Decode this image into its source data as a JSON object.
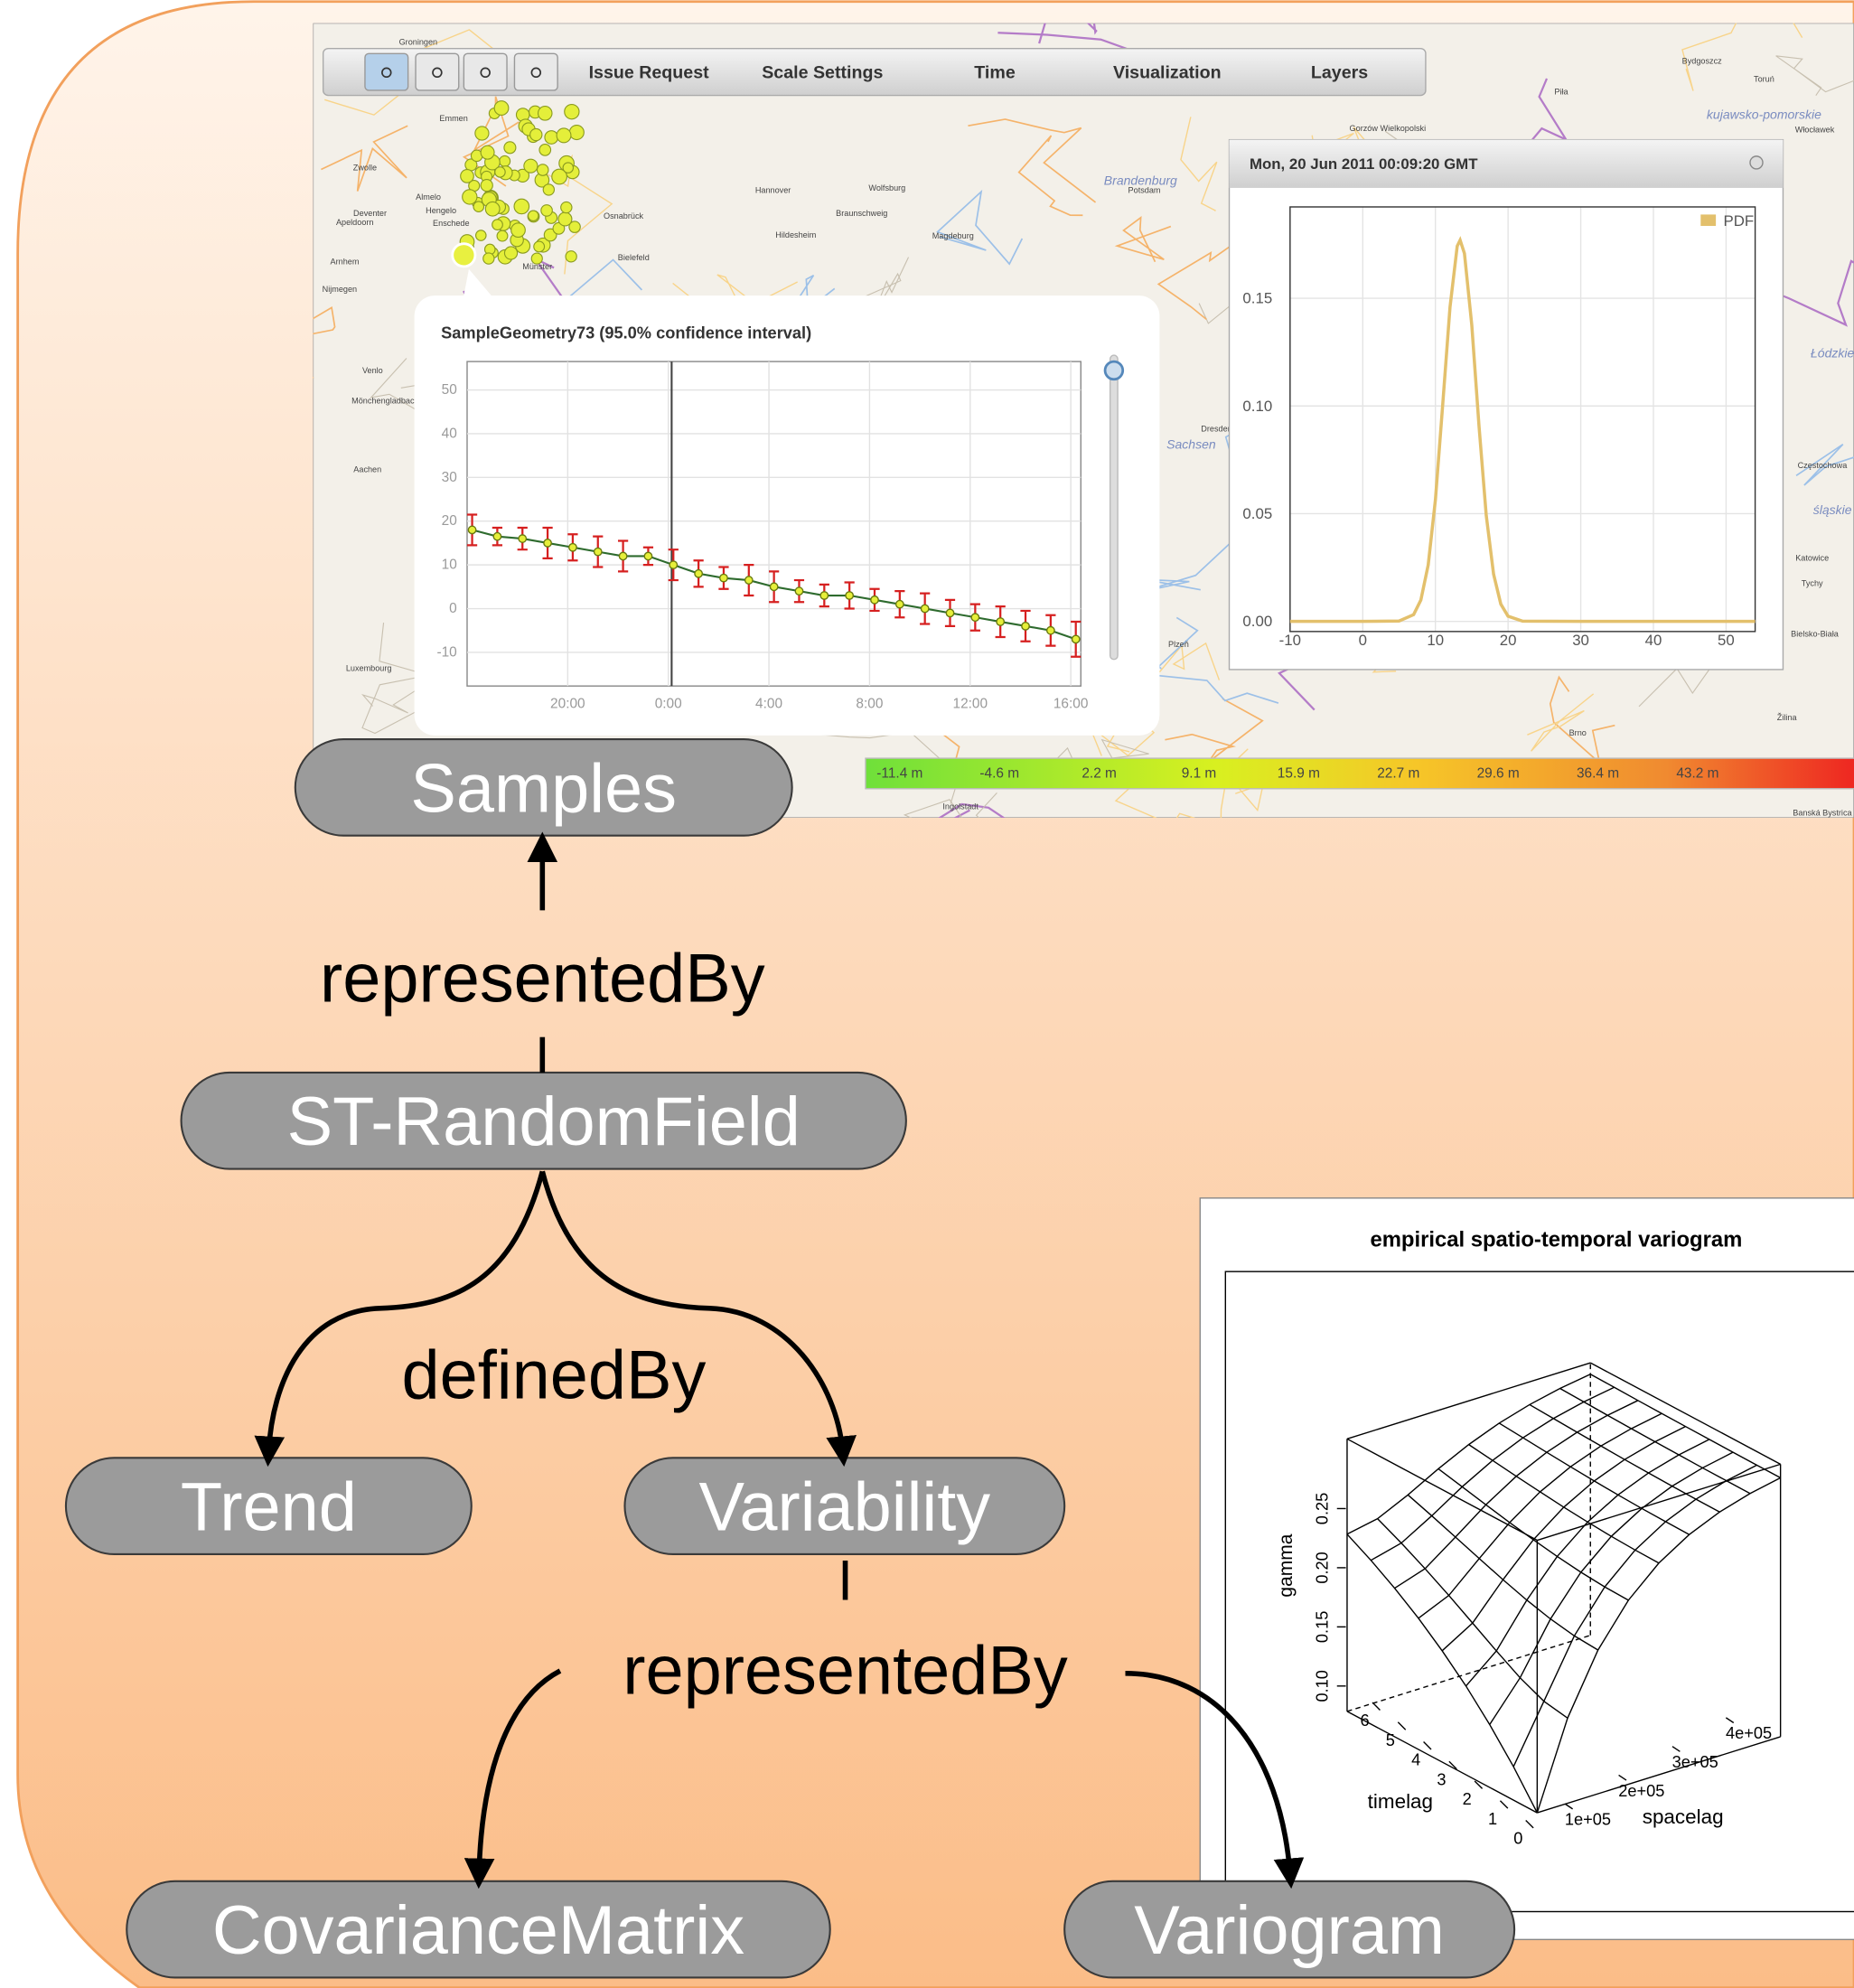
{
  "map": {
    "toolbar": [
      "Issue Request",
      "Scale Settings",
      "Time",
      "Visualization",
      "Layers"
    ],
    "labels": [
      "Groningen",
      "Emmen",
      "Zwolle",
      "Almelo",
      "Hengelo",
      "Enschede",
      "Deventer",
      "Apeldoorn",
      "Arnhem",
      "Nijmegen",
      "Venlo",
      "Mönchengladbach",
      "Aachen",
      "Luxembourg",
      "Münster",
      "Osnabrück",
      "Bielefeld",
      "Hannover",
      "Wolfsburg",
      "Braunschweig",
      "Hildesheim",
      "Magdeburg",
      "Brandenburg",
      "Potsdam",
      "Sachsen",
      "Dresden",
      "Plzeň",
      "Ingolstadt",
      "Brno",
      "Žilina",
      "Gorzów Wielkopolski",
      "Piła",
      "Bydgoszcz",
      "Toruń",
      "kujawsko-pomorskie",
      "Włocławek",
      "Łódzkie",
      "Częstochowa",
      "śląskie",
      "Katowice",
      "Tychy",
      "Bielsko-Biała",
      "Banská Bystrica"
    ],
    "color_scale": [
      "-11.4 m",
      "-4.6 m",
      "2.2 m",
      "9.1 m",
      "15.9 m",
      "22.7 m",
      "29.6 m",
      "36.4 m",
      "43.2 m"
    ]
  },
  "sample_chart": {
    "type": "errorbar",
    "title": "SampleGeometry73 (95.0% confidence interval)",
    "x": [
      16.2,
      17.2,
      18.2,
      19.2,
      20.2,
      21.2,
      22.2,
      23.2,
      24.2,
      25.2,
      26.2,
      27.2,
      28.2,
      29.2,
      30.2,
      31.2,
      32.2,
      33.2,
      34.2,
      35.2,
      36.2,
      37.2,
      38.2,
      39.2,
      40.2
    ],
    "values": [
      18,
      16.5,
      16,
      15,
      14,
      13,
      12,
      12,
      10,
      8,
      7,
      6.5,
      5,
      4,
      3,
      3,
      2,
      1,
      0,
      -1,
      -2,
      -3,
      -4,
      -5,
      -7
    ],
    "errors": [
      3.5,
      2,
      2.5,
      3.5,
      3,
      3.5,
      3.5,
      2,
      3.5,
      3,
      2.5,
      3.5,
      3.5,
      2.5,
      2.5,
      3,
      2.5,
      3,
      3.5,
      3,
      3,
      3.5,
      3.5,
      3.5,
      4
    ],
    "xlim": [
      16,
      40.4
    ],
    "ylim": [
      -17.7,
      56.5
    ],
    "xticks": [
      {
        "value": 20,
        "label": "20:00"
      },
      {
        "value": 24,
        "label": "0:00"
      },
      {
        "value": 28,
        "label": "4:00"
      },
      {
        "value": 32,
        "label": "8:00"
      },
      {
        "value": 36,
        "label": "12:00"
      },
      {
        "value": 40,
        "label": "16:00"
      }
    ],
    "yticks": [
      -10,
      0,
      10,
      20,
      30,
      40,
      50
    ],
    "grid": true
  },
  "pdf_chart": {
    "type": "line",
    "title": "Mon, 20 Jun 2011 00:09:20 GMT",
    "series": [
      {
        "name": "PDF",
        "color": "#e3c06c",
        "x": [
          -10,
          0,
          5,
          7,
          8,
          9,
          10,
          11,
          12,
          13,
          13.4,
          14,
          15,
          16,
          17,
          18,
          19,
          20,
          22,
          30,
          54
        ],
        "values": [
          0,
          0,
          0.0002,
          0.0031,
          0.0099,
          0.0262,
          0.0565,
          0.1002,
          0.1458,
          0.1742,
          0.177,
          0.1708,
          0.1375,
          0.0907,
          0.0492,
          0.0219,
          0.008,
          0.0024,
          0.0001,
          0,
          0
        ]
      }
    ],
    "xlim": [
      -10,
      54
    ],
    "ylim": [
      -0.0047,
      0.1924
    ],
    "xticks": [
      -10,
      0,
      10,
      20,
      30,
      40,
      50
    ],
    "yticks": [
      {
        "value": 0,
        "label": "0.00"
      },
      0.05,
      {
        "value": 0.1,
        "label": "0.10"
      },
      0.15
    ],
    "grid": true
  },
  "variogram": {
    "title": "empirical spatio-temporal variogram",
    "gamma_label": "gamma",
    "gamma_ticks": [
      {
        "value": 0.1,
        "label": "0.10"
      },
      0.15,
      {
        "value": 0.2,
        "label": "0.20"
      },
      0.25
    ],
    "timelag_label": "timelag",
    "timelag_ticks": [
      0,
      1,
      2,
      3,
      4,
      5,
      6
    ],
    "spacelag_label": "spacelag",
    "spacelag_ticks": [
      {
        "value": 100000,
        "label": "1e+05"
      },
      {
        "value": 200000,
        "label": "2e+05"
      },
      {
        "value": 300000,
        "label": "3e+05"
      },
      {
        "value": 400000,
        "label": "4e+05"
      }
    ]
  },
  "nodes": [
    "Samples",
    "ST-RandomField",
    "Trend",
    "Variability",
    "CovarianceMatrix",
    "Variogram"
  ],
  "edges": [
    "representedBy",
    "definedBy",
    "representedBy"
  ]
}
